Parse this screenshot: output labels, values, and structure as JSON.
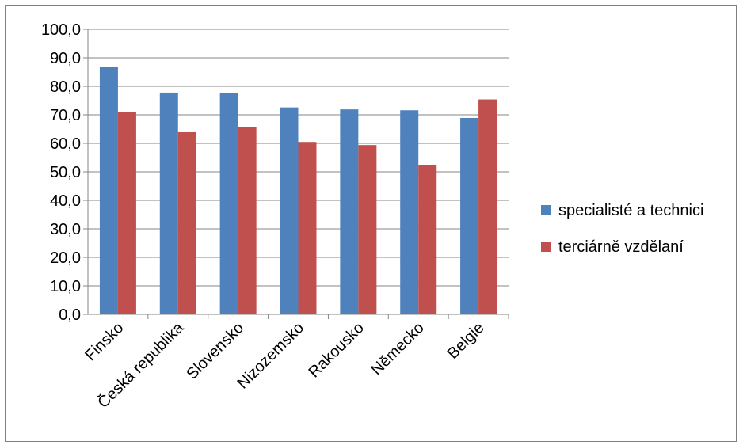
{
  "chart_data": {
    "type": "bar",
    "title": "",
    "xlabel": "",
    "ylabel": "",
    "categories": [
      "Finsko",
      "Česká republika",
      "Slovensko",
      "Nizozemsko",
      "Rakousko",
      "Německo",
      "Belgie"
    ],
    "series": [
      {
        "name": "specialisté a technici",
        "color": "#4f81bd",
        "values": [
          86.8,
          77.8,
          77.5,
          72.6,
          71.9,
          71.6,
          68.9
        ]
      },
      {
        "name": "terciárně vzdělaní",
        "color": "#c0504d",
        "values": [
          70.9,
          63.9,
          65.7,
          60.5,
          59.4,
          52.4,
          75.4
        ]
      }
    ],
    "ylim": [
      0,
      100
    ],
    "ytick_labels": [
      "0,0",
      "10,0",
      "20,0",
      "30,0",
      "40,0",
      "50,0",
      "60,0",
      "70,0",
      "80,0",
      "90,0",
      "100,0"
    ],
    "grid": true,
    "legend_position": "right"
  }
}
